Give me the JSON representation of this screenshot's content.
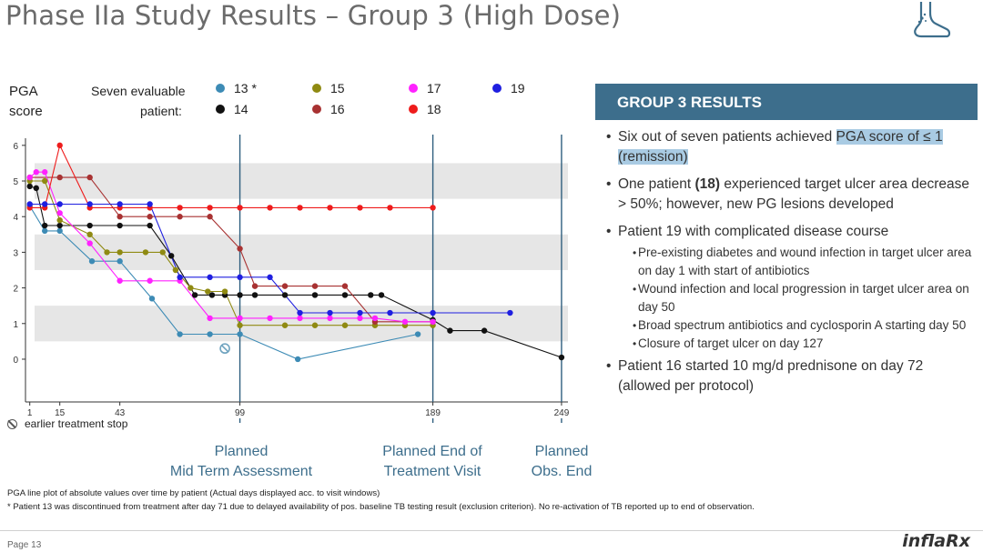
{
  "slide": {
    "title": "Phase IIa Study Results – Group 3 (High Dose)",
    "page": "Page 13",
    "brand": "inflaRx",
    "logo_icon": "foot-icon"
  },
  "legend": {
    "y_title_line1": "PGA",
    "y_title_line2": "score",
    "caption_line1": "Seven evaluable",
    "caption_line2": "patient:",
    "items": [
      {
        "label": "13 *",
        "color": "#3d8bb5"
      },
      {
        "label": "15",
        "color": "#8f8a12"
      },
      {
        "label": "17",
        "color": "#ff22ff"
      },
      {
        "label": "19",
        "color": "#1f1fe0"
      },
      {
        "label": "14",
        "color": "#111111"
      },
      {
        "label": "16",
        "color": "#a83232"
      },
      {
        "label": "18",
        "color": "#ee1c1c"
      }
    ]
  },
  "milestones": [
    {
      "line1": "Planned",
      "line2": "Mid Term Assessment"
    },
    {
      "line1": "Planned End of",
      "line2": "Treatment Visit"
    },
    {
      "line1": "Planned",
      "line2": "Obs. End"
    }
  ],
  "stop_note": "earlier treatment stop",
  "chart_data": {
    "type": "line",
    "xlabel": "",
    "ylabel": "PGA score",
    "x_ticks": [
      1,
      15,
      43,
      99,
      189,
      249
    ],
    "y_ticks": [
      0,
      1,
      2,
      3,
      4,
      5,
      6
    ],
    "xlim": [
      -1,
      252
    ],
    "ylim": [
      -1.2,
      6.2
    ],
    "reference_lines_x": [
      99,
      189,
      249
    ],
    "shaded_bands": [
      [
        0.5,
        1.5
      ],
      [
        2.5,
        3.5
      ],
      [
        4.5,
        5.5
      ]
    ],
    "early_stop_marker": {
      "x": 92,
      "y": 0.3
    },
    "series": [
      {
        "name": "13 *",
        "color": "#3d8bb5",
        "points": [
          [
            1,
            4.3
          ],
          [
            8,
            3.6
          ],
          [
            15,
            3.6
          ],
          [
            30,
            2.75
          ],
          [
            43,
            2.75
          ],
          [
            58,
            1.7
          ],
          [
            71,
            0.7
          ],
          [
            85,
            0.7
          ],
          [
            99,
            0.7
          ],
          [
            126,
            0
          ],
          [
            182,
            0.7
          ]
        ]
      },
      {
        "name": "14",
        "color": "#111111",
        "points": [
          [
            1,
            4.85
          ],
          [
            4,
            4.8
          ],
          [
            8,
            3.75
          ],
          [
            15,
            3.75
          ],
          [
            29,
            3.75
          ],
          [
            43,
            3.75
          ],
          [
            57,
            3.75
          ],
          [
            67,
            2.9
          ],
          [
            78,
            1.8
          ],
          [
            86,
            1.8
          ],
          [
            92,
            1.8
          ],
          [
            99,
            1.8
          ],
          [
            106,
            1.8
          ],
          [
            120,
            1.8
          ],
          [
            134,
            1.8
          ],
          [
            148,
            1.8
          ],
          [
            160,
            1.8
          ],
          [
            165,
            1.8
          ],
          [
            189,
            1.1
          ],
          [
            197,
            0.8
          ],
          [
            213,
            0.8
          ],
          [
            249,
            0.05
          ]
        ]
      },
      {
        "name": "15",
        "color": "#8f8a12",
        "points": [
          [
            1,
            5
          ],
          [
            8,
            5
          ],
          [
            15,
            3.9
          ],
          [
            29,
            3.5
          ],
          [
            37,
            3
          ],
          [
            43,
            3
          ],
          [
            55,
            3
          ],
          [
            63,
            3
          ],
          [
            69,
            2.5
          ],
          [
            76,
            2
          ],
          [
            84,
            1.9
          ],
          [
            92,
            1.9
          ],
          [
            99,
            0.95
          ],
          [
            120,
            0.95
          ],
          [
            134,
            0.95
          ],
          [
            148,
            0.95
          ],
          [
            162,
            0.95
          ],
          [
            176,
            0.95
          ],
          [
            189,
            0.95
          ]
        ]
      },
      {
        "name": "16",
        "color": "#a83232",
        "points": [
          [
            1,
            5.1
          ],
          [
            15,
            5.1
          ],
          [
            29,
            5.1
          ],
          [
            43,
            4
          ],
          [
            57,
            4
          ],
          [
            71,
            4
          ],
          [
            85,
            4
          ],
          [
            99,
            3.1
          ],
          [
            106,
            2.05
          ],
          [
            120,
            2.05
          ],
          [
            134,
            2.05
          ],
          [
            148,
            2.05
          ],
          [
            162,
            1.05
          ],
          [
            189,
            1.05
          ]
        ]
      },
      {
        "name": "17",
        "color": "#ff22ff",
        "points": [
          [
            1,
            5.1
          ],
          [
            4,
            5.25
          ],
          [
            8,
            5.25
          ],
          [
            15,
            4.1
          ],
          [
            29,
            3.25
          ],
          [
            43,
            2.2
          ],
          [
            57,
            2.2
          ],
          [
            71,
            2.2
          ],
          [
            85,
            1.15
          ],
          [
            99,
            1.15
          ],
          [
            113,
            1.15
          ],
          [
            127,
            1.15
          ],
          [
            141,
            1.15
          ],
          [
            155,
            1.15
          ],
          [
            162,
            1.15
          ],
          [
            176,
            1.05
          ],
          [
            189,
            1.05
          ]
        ]
      },
      {
        "name": "18",
        "color": "#ee1c1c",
        "points": [
          [
            1,
            4.25
          ],
          [
            8,
            4.25
          ],
          [
            15,
            6
          ],
          [
            29,
            4.25
          ],
          [
            43,
            4.25
          ],
          [
            57,
            4.25
          ],
          [
            71,
            4.25
          ],
          [
            85,
            4.25
          ],
          [
            99,
            4.25
          ],
          [
            113,
            4.25
          ],
          [
            127,
            4.25
          ],
          [
            141,
            4.25
          ],
          [
            155,
            4.25
          ],
          [
            169,
            4.25
          ],
          [
            189,
            4.25
          ]
        ]
      },
      {
        "name": "19",
        "color": "#1f1fe0",
        "points": [
          [
            1,
            4.35
          ],
          [
            8,
            4.35
          ],
          [
            15,
            4.35
          ],
          [
            29,
            4.35
          ],
          [
            43,
            4.35
          ],
          [
            57,
            4.35
          ],
          [
            71,
            2.3
          ],
          [
            85,
            2.3
          ],
          [
            99,
            2.3
          ],
          [
            113,
            2.3
          ],
          [
            127,
            1.3
          ],
          [
            141,
            1.3
          ],
          [
            155,
            1.3
          ],
          [
            169,
            1.3
          ],
          [
            189,
            1.3
          ],
          [
            225,
            1.3
          ]
        ]
      }
    ]
  },
  "panel": {
    "header": "GROUP 3 RESULTS",
    "b1_pre": "Six out of seven patients achieved ",
    "b1_highlight": "PGA score of ≤ 1 (remission)",
    "b2_pre": "One patient ",
    "b2_bold": "(18)",
    "b2_post": " experienced target ulcer area decrease > 50%; however, new PG lesions developed",
    "b3": "Patient 19 with complicated disease course",
    "b3_sub": [
      "Pre-existing diabetes and wound infection in target ulcer area on day 1 with start of antibiotics",
      "Wound infection and local progression in target ulcer area on day 50",
      "Broad spectrum antibiotics and cyclosporin A starting day 50",
      "Closure of target ulcer on day 127"
    ],
    "b4": "Patient 16 started 10 mg/d prednisone on day 72 (allowed per protocol)"
  },
  "footnotes": {
    "line1": "PGA line plot of absolute values over time by patient (Actual days displayed acc. to visit windows)",
    "line2": "* Patient 13 was discontinued from treatment after day 71 due to delayed availability of pos. baseline TB testing result (exclusion criterion). No re-activation of TB reported up to end of observation."
  }
}
